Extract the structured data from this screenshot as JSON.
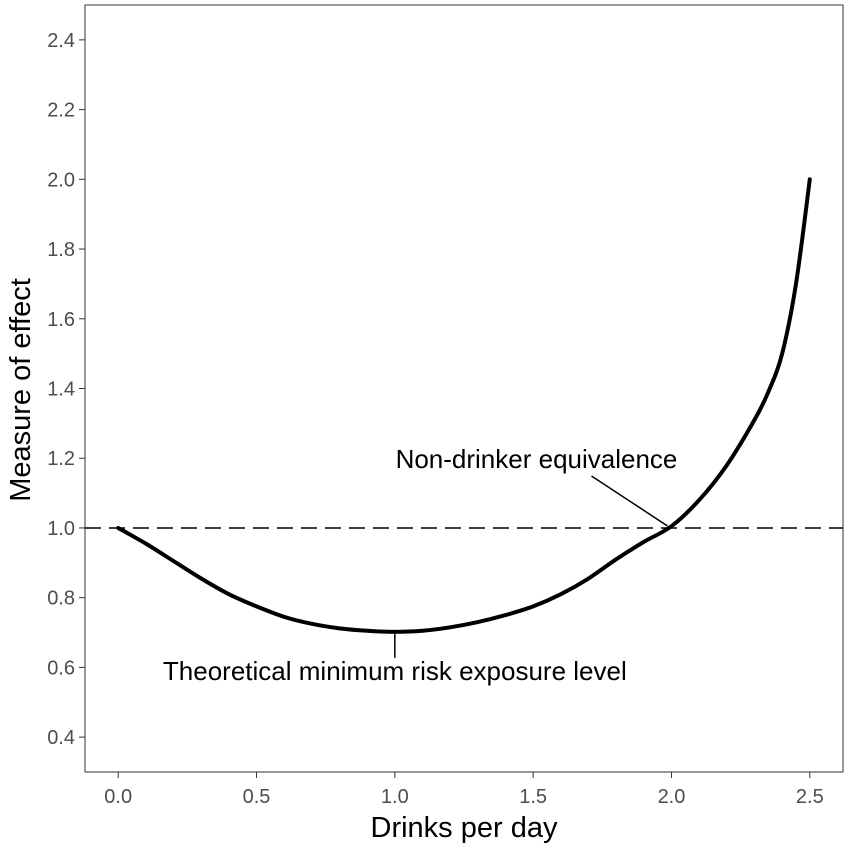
{
  "chart_data": {
    "type": "line",
    "title": "",
    "xlabel": "Drinks per day",
    "ylabel": "Measure of effect",
    "xlim": [
      -0.12,
      2.62
    ],
    "ylim": [
      0.3,
      2.5
    ],
    "xticks": [
      0.0,
      0.5,
      1.0,
      1.5,
      2.0,
      2.5
    ],
    "xtick_labels": [
      "0.0",
      "0.5",
      "1.0",
      "1.5",
      "2.0",
      "2.5"
    ],
    "yticks": [
      0.4,
      0.6,
      0.8,
      1.0,
      1.2,
      1.4,
      1.6,
      1.8,
      2.0,
      2.2,
      2.4
    ],
    "ytick_labels": [
      "0.4",
      "0.6",
      "0.8",
      "1.0",
      "1.2",
      "1.4",
      "1.6",
      "1.8",
      "2.0",
      "2.2",
      "2.4"
    ],
    "grid": false,
    "series": [
      {
        "x": [
          0.0,
          0.1,
          0.2,
          0.3,
          0.4,
          0.5,
          0.6,
          0.7,
          0.8,
          0.9,
          1.0,
          1.1,
          1.2,
          1.3,
          1.4,
          1.5,
          1.6,
          1.7,
          1.8,
          1.9,
          2.0,
          2.1,
          2.2,
          2.3,
          2.35,
          2.4,
          2.45,
          2.5
        ],
        "y": [
          1.0,
          0.955,
          0.905,
          0.855,
          0.81,
          0.775,
          0.745,
          0.725,
          0.712,
          0.705,
          0.702,
          0.705,
          0.715,
          0.73,
          0.75,
          0.775,
          0.81,
          0.855,
          0.91,
          0.96,
          1.005,
          1.08,
          1.18,
          1.31,
          1.39,
          1.5,
          1.7,
          2.0
        ],
        "color": "#000000"
      }
    ],
    "reference_line": {
      "y": 1.0,
      "style": "dashed",
      "color": "#000000"
    },
    "annotations": [
      {
        "text": "Non-drinker equivalence",
        "point": [
          2.0,
          1.0
        ]
      },
      {
        "text": "Theoretical minimum risk exposure level",
        "point": [
          1.0,
          0.702
        ]
      }
    ]
  }
}
